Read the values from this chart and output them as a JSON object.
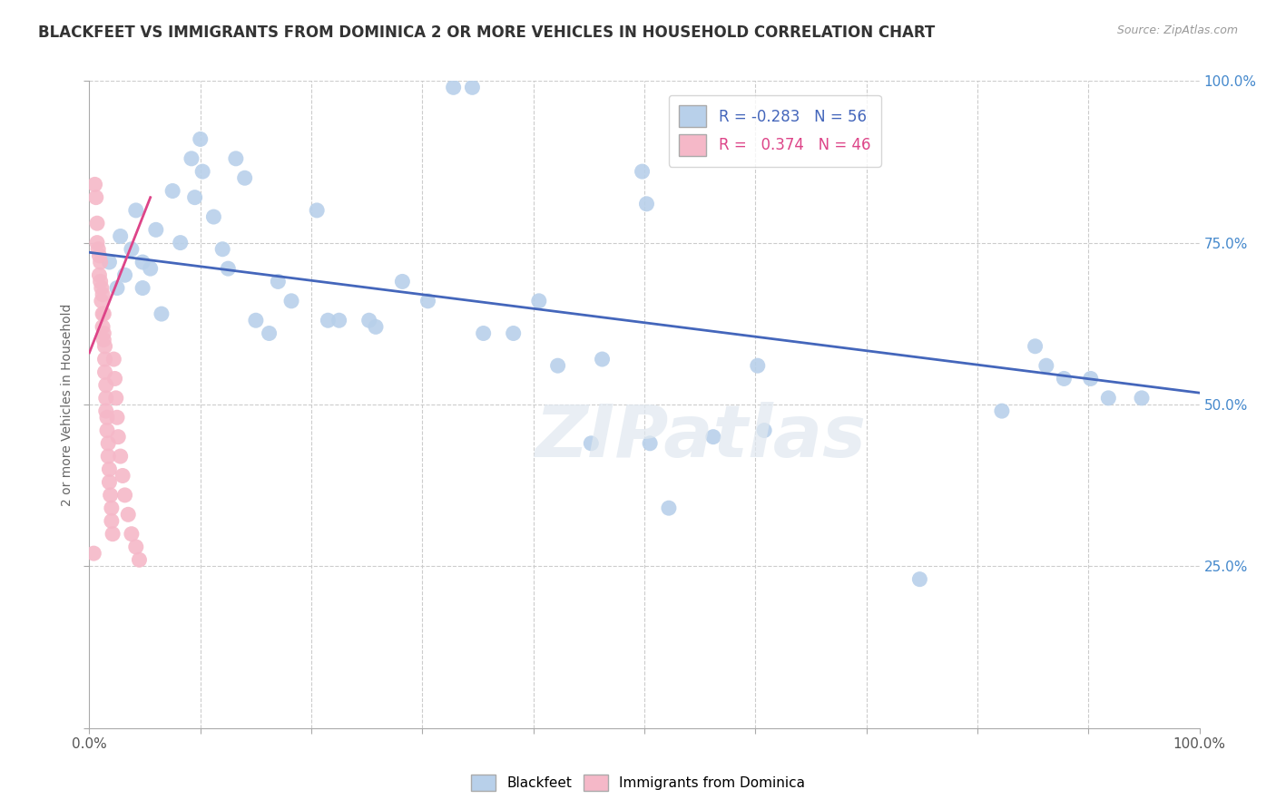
{
  "title": "BLACKFEET VS IMMIGRANTS FROM DOMINICA 2 OR MORE VEHICLES IN HOUSEHOLD CORRELATION CHART",
  "source": "Source: ZipAtlas.com",
  "ylabel": "2 or more Vehicles in Household",
  "xlim": [
    0.0,
    1.0
  ],
  "ylim": [
    0.0,
    1.0
  ],
  "ytick_positions_right": [
    1.0,
    0.75,
    0.5,
    0.25
  ],
  "ytick_labels_right": [
    "100.0%",
    "75.0%",
    "50.0%",
    "25.0%"
  ],
  "grid_color": "#cccccc",
  "background_color": "#ffffff",
  "watermark": "ZIPatlas",
  "blue_R": -0.283,
  "blue_N": 56,
  "pink_R": 0.374,
  "pink_N": 46,
  "blue_color": "#b8d0ea",
  "pink_color": "#f5b8c8",
  "blue_line_color": "#4466bb",
  "pink_line_color": "#dd4488",
  "blue_scatter": [
    [
      0.018,
      0.72
    ],
    [
      0.025,
      0.68
    ],
    [
      0.028,
      0.76
    ],
    [
      0.032,
      0.7
    ],
    [
      0.038,
      0.74
    ],
    [
      0.042,
      0.8
    ],
    [
      0.048,
      0.72
    ],
    [
      0.048,
      0.68
    ],
    [
      0.055,
      0.71
    ],
    [
      0.06,
      0.77
    ],
    [
      0.065,
      0.64
    ],
    [
      0.075,
      0.83
    ],
    [
      0.082,
      0.75
    ],
    [
      0.092,
      0.88
    ],
    [
      0.095,
      0.82
    ],
    [
      0.1,
      0.91
    ],
    [
      0.102,
      0.86
    ],
    [
      0.112,
      0.79
    ],
    [
      0.12,
      0.74
    ],
    [
      0.125,
      0.71
    ],
    [
      0.132,
      0.88
    ],
    [
      0.14,
      0.85
    ],
    [
      0.15,
      0.63
    ],
    [
      0.162,
      0.61
    ],
    [
      0.17,
      0.69
    ],
    [
      0.182,
      0.66
    ],
    [
      0.205,
      0.8
    ],
    [
      0.215,
      0.63
    ],
    [
      0.225,
      0.63
    ],
    [
      0.252,
      0.63
    ],
    [
      0.258,
      0.62
    ],
    [
      0.282,
      0.69
    ],
    [
      0.305,
      0.66
    ],
    [
      0.328,
      0.99
    ],
    [
      0.345,
      0.99
    ],
    [
      0.355,
      0.61
    ],
    [
      0.382,
      0.61
    ],
    [
      0.405,
      0.66
    ],
    [
      0.422,
      0.56
    ],
    [
      0.452,
      0.44
    ],
    [
      0.462,
      0.57
    ],
    [
      0.498,
      0.86
    ],
    [
      0.502,
      0.81
    ],
    [
      0.505,
      0.44
    ],
    [
      0.522,
      0.34
    ],
    [
      0.562,
      0.45
    ],
    [
      0.602,
      0.56
    ],
    [
      0.608,
      0.46
    ],
    [
      0.748,
      0.23
    ],
    [
      0.822,
      0.49
    ],
    [
      0.852,
      0.59
    ],
    [
      0.862,
      0.56
    ],
    [
      0.878,
      0.54
    ],
    [
      0.902,
      0.54
    ],
    [
      0.918,
      0.51
    ],
    [
      0.948,
      0.51
    ]
  ],
  "pink_scatter": [
    [
      0.005,
      0.84
    ],
    [
      0.006,
      0.82
    ],
    [
      0.007,
      0.78
    ],
    [
      0.007,
      0.75
    ],
    [
      0.008,
      0.74
    ],
    [
      0.009,
      0.73
    ],
    [
      0.009,
      0.7
    ],
    [
      0.01,
      0.72
    ],
    [
      0.01,
      0.69
    ],
    [
      0.011,
      0.68
    ],
    [
      0.011,
      0.66
    ],
    [
      0.012,
      0.67
    ],
    [
      0.012,
      0.64
    ],
    [
      0.012,
      0.62
    ],
    [
      0.013,
      0.64
    ],
    [
      0.013,
      0.61
    ],
    [
      0.013,
      0.6
    ],
    [
      0.014,
      0.59
    ],
    [
      0.014,
      0.57
    ],
    [
      0.014,
      0.55
    ],
    [
      0.015,
      0.53
    ],
    [
      0.015,
      0.51
    ],
    [
      0.015,
      0.49
    ],
    [
      0.016,
      0.48
    ],
    [
      0.016,
      0.46
    ],
    [
      0.017,
      0.44
    ],
    [
      0.017,
      0.42
    ],
    [
      0.018,
      0.4
    ],
    [
      0.018,
      0.38
    ],
    [
      0.019,
      0.36
    ],
    [
      0.02,
      0.34
    ],
    [
      0.02,
      0.32
    ],
    [
      0.021,
      0.3
    ],
    [
      0.022,
      0.57
    ],
    [
      0.023,
      0.54
    ],
    [
      0.024,
      0.51
    ],
    [
      0.025,
      0.48
    ],
    [
      0.026,
      0.45
    ],
    [
      0.028,
      0.42
    ],
    [
      0.03,
      0.39
    ],
    [
      0.032,
      0.36
    ],
    [
      0.035,
      0.33
    ],
    [
      0.038,
      0.3
    ],
    [
      0.042,
      0.28
    ],
    [
      0.045,
      0.26
    ],
    [
      0.004,
      0.27
    ]
  ],
  "blue_trendline": [
    0.0,
    1.0,
    0.735,
    0.518
  ],
  "pink_trendline": [
    0.0,
    0.055,
    0.58,
    0.82
  ]
}
